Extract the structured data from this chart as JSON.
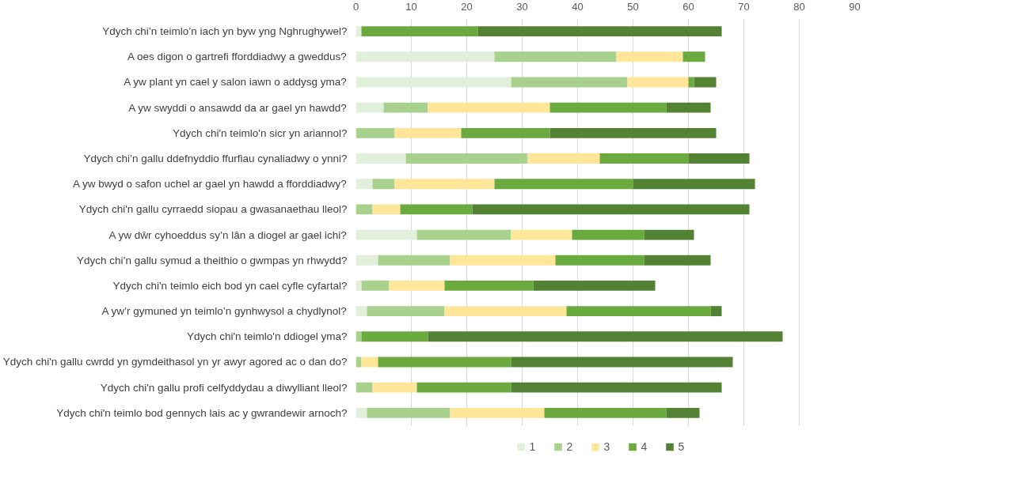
{
  "chart_data": {
    "type": "bar",
    "orientation": "horizontal",
    "stacked": true,
    "categories": [
      "Ydych chi’n teimlo’n iach yn byw yng Nghrughywel?",
      "A oes digon o gartrefi fforddiadwy a gweddus?",
      "A yw plant yn cael y salon iawn o addysg yma?",
      "A yw swyddi o ansawdd da ar gael yn hawdd?",
      "Ydych chi'n teimlo'n sicr yn ariannol?",
      "Ydych chi’n gallu ddefnyddio ffurfiau cynaliadwy o ynni?",
      "A yw bwyd o safon uchel ar gael yn hawdd a fforddiadwy?",
      "Ydych chi'n gallu cyrraedd siopau a gwasanaethau lleol?",
      "A yw dŵr cyhoeddus sy’n lân a diogel ar gael ichi?",
      "Ydych chi’n gallu symud a theithio o gwmpas yn rhwydd?",
      "Ydych chi'n teimlo eich bod yn cael cyfle cyfartal?",
      "A yw’r gymuned yn teimlo’n gynhwysol a chydlynol?",
      "Ydych chi'n teimlo'n ddiogel yma?",
      "Ydych chi'n gallu cwrdd yn gymdeithasol yn yr awyr agored ac o dan do?",
      "Ydych chi'n gallu profi celfyddydau a diwylliant lleol?",
      "Ydych chi'n teimlo bod gennych lais ac y gwrandewir arnoch?"
    ],
    "series": [
      {
        "name": "1",
        "color": "#e2efda",
        "values": [
          1,
          25,
          28,
          5,
          0,
          9,
          3,
          0,
          11,
          4,
          1,
          2,
          0,
          0,
          0,
          2
        ]
      },
      {
        "name": "2",
        "color": "#a9d18e",
        "values": [
          0,
          22,
          21,
          8,
          7,
          22,
          4,
          3,
          17,
          13,
          5,
          14,
          1,
          1,
          3,
          15
        ]
      },
      {
        "name": "3",
        "color": "#ffe699",
        "values": [
          0,
          12,
          11,
          22,
          12,
          13,
          18,
          5,
          11,
          19,
          10,
          22,
          0,
          3,
          8,
          17
        ]
      },
      {
        "name": "4",
        "color": "#6aaa3f",
        "values": [
          21,
          4,
          1,
          21,
          16,
          16,
          25,
          13,
          13,
          16,
          16,
          26,
          12,
          24,
          17,
          22
        ]
      },
      {
        "name": "5",
        "color": "#548235",
        "values": [
          44,
          0,
          4,
          8,
          30,
          11,
          22,
          50,
          9,
          12,
          22,
          2,
          64,
          40,
          38,
          6
        ]
      }
    ],
    "xlim": [
      0,
      90
    ],
    "xticks": [
      0,
      10,
      20,
      30,
      40,
      50,
      60,
      70,
      80,
      90
    ],
    "grid": "x",
    "legend": "bottom"
  }
}
